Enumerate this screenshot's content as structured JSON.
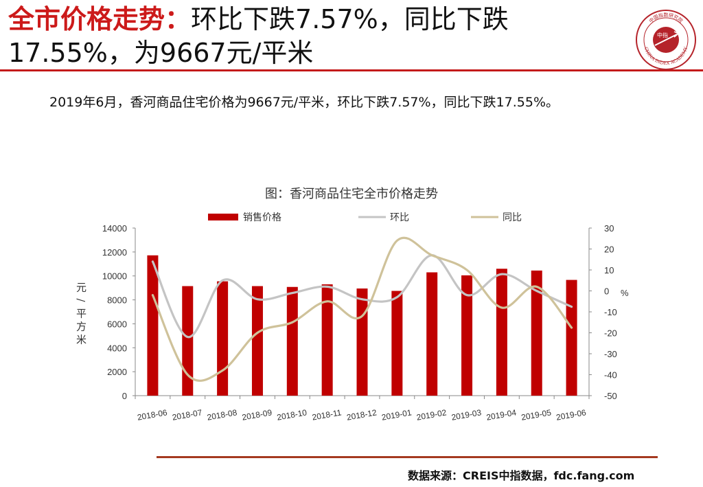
{
  "header": {
    "title_red": "全市价格走势：",
    "title_black": "环比下跌7.57%，同比下跌17.55%，为9667元/平米",
    "logo_text": "CHINA INDEX ACADEMY",
    "logo_center": "中指",
    "logo_top_text": "中国指数研究院"
  },
  "summary": "2019年6月，香河商品住宅价格为9667元/平米，环比下跌7.57%，同比下跌17.55%。",
  "source": "数据来源：CREIS中指数据，fdc.fang.com",
  "colors": {
    "accent": "#c41a1a",
    "bar": "#c00000",
    "mom_line": "#c4c4c4",
    "yoy_line": "#cfc29a",
    "rule_bottom": "#a4391f"
  },
  "chart_data": {
    "type": "bar",
    "title": "图：香河商品住宅全市价格走势",
    "categories": [
      "2018-06",
      "2018-07",
      "2018-08",
      "2018-09",
      "2018-10",
      "2018-11",
      "2018-12",
      "2019-01",
      "2019-02",
      "2019-03",
      "2019-04",
      "2019-05",
      "2019-06"
    ],
    "series": [
      {
        "name": "销售价格",
        "type": "bar",
        "axis": "left",
        "values": [
          11720,
          9150,
          9550,
          9150,
          9080,
          9300,
          8950,
          8750,
          10300,
          10050,
          10600,
          10450,
          9667
        ]
      },
      {
        "name": "环比",
        "type": "line",
        "axis": "right",
        "values": [
          14,
          -22,
          5,
          -4,
          -1,
          2,
          -4,
          -3,
          17,
          -2,
          8,
          0,
          -7.57
        ]
      },
      {
        "name": "同比",
        "type": "line",
        "axis": "right",
        "values": [
          -2,
          -40,
          -38,
          -20,
          -15,
          -5,
          -12,
          24,
          17,
          10,
          -8,
          2,
          -17.55
        ]
      }
    ],
    "left_axis": {
      "label": "元/平方米",
      "ylim": [
        0,
        14000
      ],
      "ticks": [
        "0",
        "2000",
        "4000",
        "6000",
        "8000",
        "10000",
        "12000",
        "14000"
      ]
    },
    "right_axis": {
      "label": "%",
      "ylim": [
        -50,
        30
      ],
      "ticks": [
        "-50",
        "-40",
        "-30",
        "-20",
        "-10",
        "0",
        "10",
        "20",
        "30"
      ]
    },
    "legend_position": "top",
    "grid": false
  }
}
